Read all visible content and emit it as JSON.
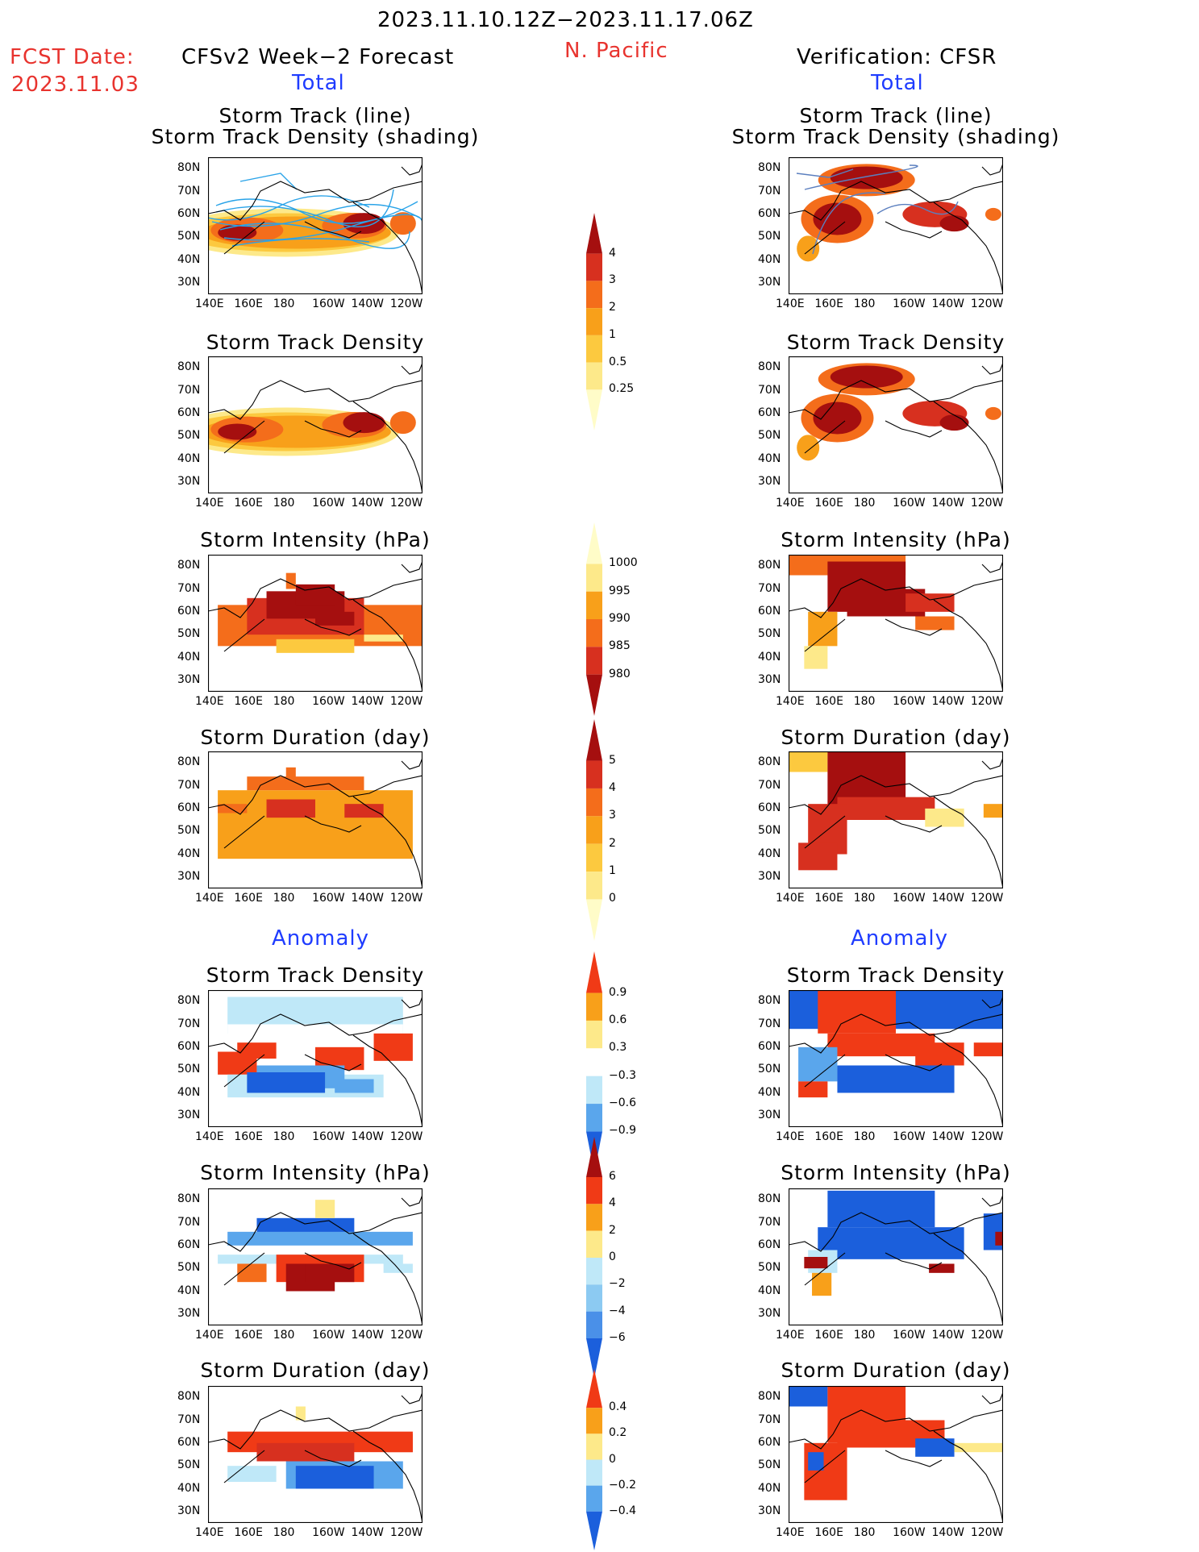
{
  "header": {
    "period": "2023.11.10.12Z−2023.11.17.06Z",
    "region": "N. Pacific",
    "fcst_label": "FCST Date:",
    "fcst_date": "2023.11.03",
    "left_title": "CFSv2 Week−2 Forecast",
    "right_title": "Verification: CFSR",
    "left_sub": "Total",
    "right_sub": "Total",
    "left_anom": "Anomaly",
    "right_anom": "Anomaly"
  },
  "axes": {
    "lat_labels": [
      "80N",
      "70N",
      "60N",
      "50N",
      "40N",
      "30N"
    ],
    "lon_labels": [
      "140E",
      "160E",
      "180",
      "160W",
      "140W",
      "120W"
    ]
  },
  "panels": {
    "left": [
      {
        "title1": "Storm Track (line)",
        "title2": "Storm Track Density (shading)",
        "kind": "track"
      },
      {
        "title1": "Storm Track Density",
        "title2": "",
        "kind": "density"
      },
      {
        "title1": "Storm Intensity (hPa)",
        "title2": "",
        "kind": "intensity"
      },
      {
        "title1": "Storm Duration (day)",
        "title2": "",
        "kind": "duration"
      },
      {
        "title1": "Storm Track Density",
        "title2": "",
        "kind": "anom_density"
      },
      {
        "title1": "Storm Intensity (hPa)",
        "title2": "",
        "kind": "anom_intensity"
      },
      {
        "title1": "Storm Duration (day)",
        "title2": "",
        "kind": "anom_duration"
      }
    ],
    "right": [
      {
        "title1": "Storm Track (line)",
        "title2": "Storm Track Density (shading)",
        "kind": "track"
      },
      {
        "title1": "Storm Track Density",
        "title2": "",
        "kind": "density"
      },
      {
        "title1": "Storm Intensity (hPa)",
        "title2": "",
        "kind": "intensity"
      },
      {
        "title1": "Storm Duration (day)",
        "title2": "",
        "kind": "duration"
      },
      {
        "title1": "Storm Track Density",
        "title2": "",
        "kind": "anom_density"
      },
      {
        "title1": "Storm Intensity (hPa)",
        "title2": "",
        "kind": "anom_intensity"
      },
      {
        "title1": "Storm Duration (day)",
        "title2": "",
        "kind": "anom_duration"
      }
    ]
  },
  "colorbars": {
    "density": {
      "labels": [
        "4",
        "3",
        "2",
        "1",
        "0.5",
        "0.25"
      ],
      "colors": [
        "#a50f0f",
        "#d7301f",
        "#f46d1b",
        "#f8a01a",
        "#fcc93f",
        "#fde98a",
        "#fffcc8"
      ]
    },
    "intensity": {
      "labels": [
        "1000",
        "995",
        "990",
        "985",
        "980"
      ],
      "colors": [
        "#fffcc8",
        "#fde98a",
        "#f8a01a",
        "#f46d1b",
        "#d7301f",
        "#a50f0f"
      ]
    },
    "duration": {
      "labels": [
        "5",
        "4",
        "3",
        "2",
        "1",
        "0"
      ],
      "colors": [
        "#a50f0f",
        "#d7301f",
        "#f46d1b",
        "#f8a01a",
        "#fcc93f",
        "#fde98a",
        "#fffcc8"
      ]
    },
    "anom_density": {
      "labels": [
        "0.9",
        "0.6",
        "0.3",
        "−0.3",
        "−0.6",
        "−0.9"
      ],
      "colors": [
        "#f03a16",
        "#f8a01a",
        "#fde98a",
        "#ffffff",
        "#bfe8f8",
        "#5aa6ec",
        "#1b5fdc"
      ]
    },
    "anom_intensity": {
      "labels": [
        "6",
        "4",
        "2",
        "0",
        "−2",
        "−4",
        "−6"
      ],
      "colors": [
        "#a50f0f",
        "#f03a16",
        "#f8a01a",
        "#fde98a",
        "#bfe8f8",
        "#8ccaf2",
        "#4a90e8",
        "#1b5fdc"
      ]
    },
    "anom_duration": {
      "labels": [
        "0.4",
        "0.2",
        "0",
        "−0.2",
        "−0.4"
      ],
      "colors": [
        "#f03a16",
        "#f8a01a",
        "#fde98a",
        "#bfe8f8",
        "#5aa6ec",
        "#1b5fdc"
      ]
    }
  }
}
